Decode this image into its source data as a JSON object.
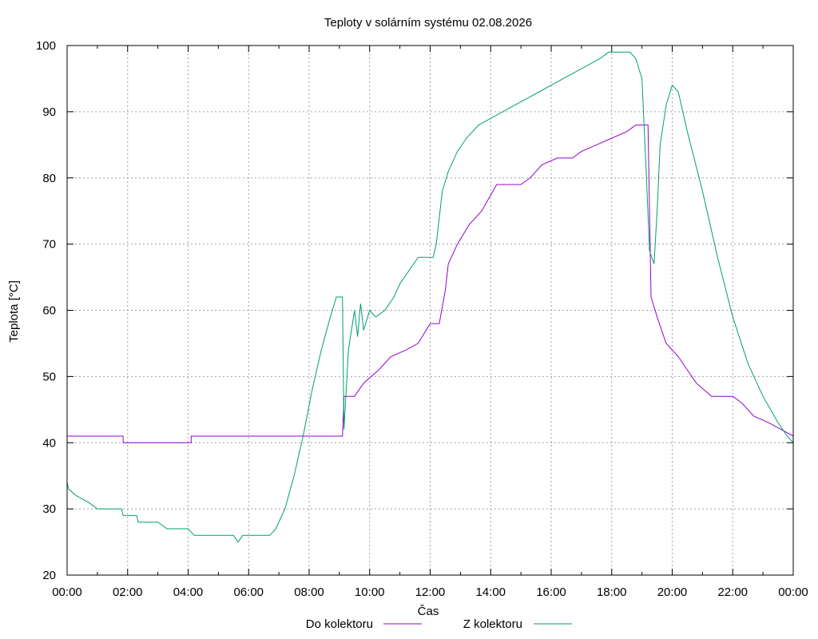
{
  "chart_data": {
    "type": "line",
    "title": "Teploty v solárním systému 02.08.2026",
    "xlabel": "Čas",
    "ylabel": "Teplota [°C]",
    "ylim": [
      20,
      100
    ],
    "xlim": [
      0,
      24
    ],
    "grid": true,
    "legend_position": "bottom-center",
    "x_ticks": [
      "00:00",
      "02:00",
      "04:00",
      "06:00",
      "08:00",
      "10:00",
      "12:00",
      "14:00",
      "16:00",
      "18:00",
      "20:00",
      "22:00",
      "00:00"
    ],
    "y_ticks": [
      20,
      30,
      40,
      50,
      60,
      70,
      80,
      90,
      100
    ],
    "series": [
      {
        "name": "Do kolektoru",
        "color": "#9400d3",
        "points": [
          [
            0,
            41
          ],
          [
            1.85,
            41
          ],
          [
            1.85,
            40
          ],
          [
            4.1,
            40
          ],
          [
            4.1,
            41
          ],
          [
            9.1,
            41
          ],
          [
            9.15,
            47
          ],
          [
            9.5,
            47
          ],
          [
            9.8,
            49
          ],
          [
            10.3,
            51
          ],
          [
            10.7,
            53
          ],
          [
            11.2,
            54
          ],
          [
            11.6,
            55
          ],
          [
            12.0,
            58
          ],
          [
            12.3,
            58
          ],
          [
            12.5,
            63
          ],
          [
            12.6,
            67
          ],
          [
            12.9,
            70
          ],
          [
            13.3,
            73
          ],
          [
            13.7,
            75
          ],
          [
            14.2,
            79
          ],
          [
            15.0,
            79
          ],
          [
            15.3,
            80
          ],
          [
            15.7,
            82
          ],
          [
            16.2,
            83
          ],
          [
            16.7,
            83
          ],
          [
            17.0,
            84
          ],
          [
            17.5,
            85
          ],
          [
            18.0,
            86
          ],
          [
            18.5,
            87
          ],
          [
            18.8,
            88
          ],
          [
            19.2,
            88
          ],
          [
            19.25,
            75
          ],
          [
            19.3,
            62
          ],
          [
            19.5,
            59
          ],
          [
            19.8,
            55
          ],
          [
            20.2,
            53
          ],
          [
            20.5,
            51
          ],
          [
            20.8,
            49
          ],
          [
            21.3,
            47
          ],
          [
            22.0,
            47
          ],
          [
            22.3,
            46
          ],
          [
            22.7,
            44
          ],
          [
            23.2,
            43
          ],
          [
            23.6,
            42
          ],
          [
            24.0,
            41
          ]
        ]
      },
      {
        "name": "Z kolektoru",
        "color": "#009e73",
        "points": [
          [
            0,
            34
          ],
          [
            0.05,
            33
          ],
          [
            0.3,
            32
          ],
          [
            0.7,
            31
          ],
          [
            1.0,
            30
          ],
          [
            1.8,
            30
          ],
          [
            1.85,
            29
          ],
          [
            2.3,
            29
          ],
          [
            2.35,
            28
          ],
          [
            3.0,
            28
          ],
          [
            3.3,
            27
          ],
          [
            4.0,
            27
          ],
          [
            4.2,
            26
          ],
          [
            5.5,
            26
          ],
          [
            5.65,
            25
          ],
          [
            5.8,
            26
          ],
          [
            6.7,
            26
          ],
          [
            6.9,
            27
          ],
          [
            7.2,
            30
          ],
          [
            7.5,
            35
          ],
          [
            7.8,
            41
          ],
          [
            8.1,
            48
          ],
          [
            8.4,
            54
          ],
          [
            8.7,
            59
          ],
          [
            8.9,
            62
          ],
          [
            9.1,
            62
          ],
          [
            9.15,
            42
          ],
          [
            9.3,
            54
          ],
          [
            9.5,
            60
          ],
          [
            9.6,
            56
          ],
          [
            9.7,
            61
          ],
          [
            9.8,
            57
          ],
          [
            10.0,
            60
          ],
          [
            10.2,
            59
          ],
          [
            10.5,
            60
          ],
          [
            10.8,
            62
          ],
          [
            11.0,
            64
          ],
          [
            11.3,
            66
          ],
          [
            11.6,
            68
          ],
          [
            12.0,
            68
          ],
          [
            12.1,
            68
          ],
          [
            12.2,
            70
          ],
          [
            12.4,
            78
          ],
          [
            12.6,
            81
          ],
          [
            12.9,
            84
          ],
          [
            13.2,
            86
          ],
          [
            13.6,
            88
          ],
          [
            14.0,
            89
          ],
          [
            14.4,
            90
          ],
          [
            14.8,
            91
          ],
          [
            15.2,
            92
          ],
          [
            15.6,
            93
          ],
          [
            16.0,
            94
          ],
          [
            16.4,
            95
          ],
          [
            16.8,
            96
          ],
          [
            17.2,
            97
          ],
          [
            17.6,
            98
          ],
          [
            17.9,
            99
          ],
          [
            18.6,
            99
          ],
          [
            18.8,
            98
          ],
          [
            19.0,
            95
          ],
          [
            19.15,
            80
          ],
          [
            19.25,
            69
          ],
          [
            19.4,
            67
          ],
          [
            19.5,
            75
          ],
          [
            19.6,
            85
          ],
          [
            19.8,
            91
          ],
          [
            20.0,
            94
          ],
          [
            20.2,
            93
          ],
          [
            20.5,
            87
          ],
          [
            21.0,
            78
          ],
          [
            21.5,
            68
          ],
          [
            22.0,
            59
          ],
          [
            22.5,
            52
          ],
          [
            23.0,
            47
          ],
          [
            23.5,
            43
          ],
          [
            23.8,
            41
          ],
          [
            24.0,
            40
          ]
        ]
      }
    ]
  }
}
